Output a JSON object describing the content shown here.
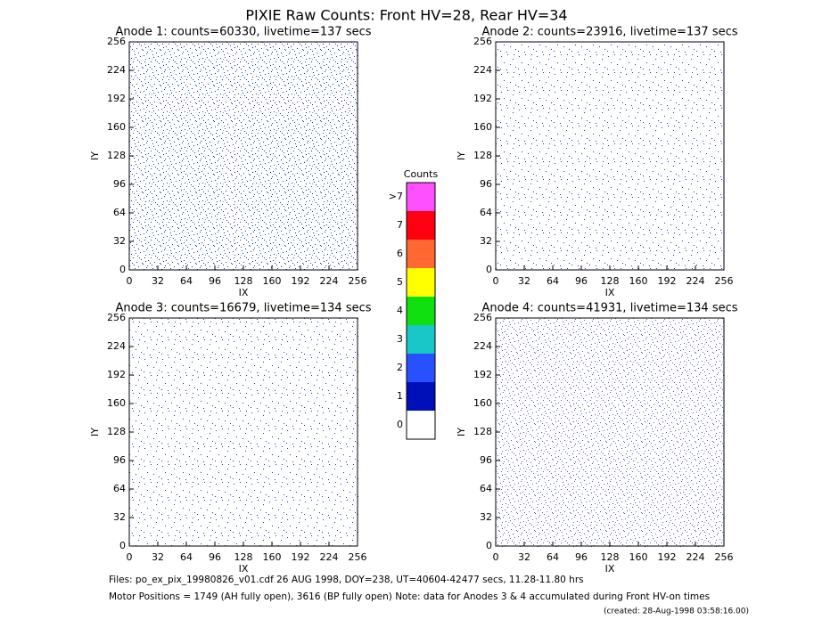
{
  "header": {
    "title": "PIXIE Raw Counts:  Front HV=28, Rear HV=34"
  },
  "chart_data": [
    {
      "type": "heatmap",
      "title": "Anode 1: counts=60330, livetime=137 secs",
      "xlabel": "IX",
      "ylabel": "IY",
      "xlim": [
        0,
        256
      ],
      "ylim": [
        0,
        256
      ],
      "xticks": [
        0,
        32,
        64,
        96,
        128,
        160,
        192,
        224,
        256
      ],
      "yticks": [
        0,
        32,
        64,
        96,
        128,
        160,
        192,
        224,
        256
      ]
    },
    {
      "type": "heatmap",
      "title": "Anode 2: counts=23916, livetime=137 secs",
      "xlabel": "IX",
      "ylabel": "IY",
      "xlim": [
        0,
        256
      ],
      "ylim": [
        0,
        256
      ],
      "xticks": [
        0,
        32,
        64,
        96,
        128,
        160,
        192,
        224,
        256
      ],
      "yticks": [
        0,
        32,
        64,
        96,
        128,
        160,
        192,
        224,
        256
      ]
    },
    {
      "type": "heatmap",
      "title": "Anode 3: counts=16679, livetime=134 secs",
      "xlabel": "IX",
      "ylabel": "IY",
      "xlim": [
        0,
        256
      ],
      "ylim": [
        0,
        256
      ],
      "xticks": [
        0,
        32,
        64,
        96,
        128,
        160,
        192,
        224,
        256
      ],
      "yticks": [
        0,
        32,
        64,
        96,
        128,
        160,
        192,
        224,
        256
      ]
    },
    {
      "type": "heatmap",
      "title": "Anode 4: counts=41931, livetime=134 secs",
      "xlabel": "IX",
      "ylabel": "IY",
      "xlim": [
        0,
        256
      ],
      "ylim": [
        0,
        256
      ],
      "xticks": [
        0,
        32,
        64,
        96,
        128,
        160,
        192,
        224,
        256
      ],
      "yticks": [
        0,
        32,
        64,
        96,
        128,
        160,
        192,
        224,
        256
      ]
    },
    {
      "type": "colorbar",
      "title": "Counts",
      "categories": [
        "0",
        "1",
        "2",
        "3",
        "4",
        "5",
        "6",
        "7",
        ">7"
      ],
      "colors": [
        "#ffffff",
        "#0010b8",
        "#2850ff",
        "#18c8c8",
        "#10e010",
        "#ffff00",
        "#ff6830",
        "#ff0010",
        "#ff50ff"
      ]
    }
  ],
  "footer": {
    "lines": [
      "Files: po_ex_pix_19980826_v01.cdf    26 AUG 1998, DOY=238, UT=40604-42477 secs, 11.28-11.80 hrs",
      "Motor Positions = 1749 (AH fully open), 3616 (BP fully open)    Note: data for Anodes 3 & 4 accumulated during Front HV-on times",
      "(created: 28-Aug-1998 03:58:16.00)"
    ]
  }
}
